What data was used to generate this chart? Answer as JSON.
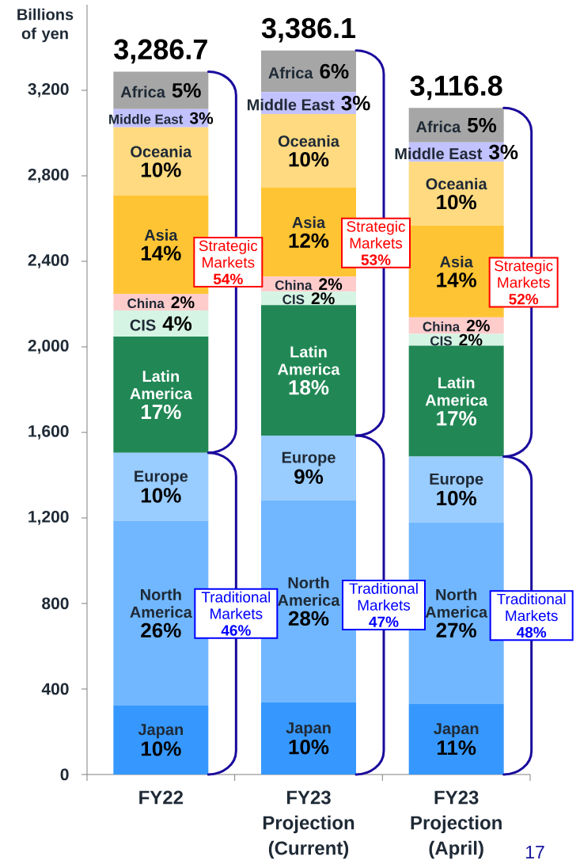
{
  "chart_data": {
    "type": "bar",
    "stacked": true,
    "ylabel": "Billions of yen",
    "categories": [
      "FY22",
      "FY23 Projection (Current)",
      "FY23 Projection (April)"
    ],
    "ylim": [
      0,
      3600
    ],
    "yticks": [
      0,
      400,
      800,
      {
        "value": 1200,
        "label": "1,200"
      },
      {
        "value": 1600,
        "label": "1,600"
      },
      {
        "value": 2000,
        "label": "2,000"
      },
      {
        "value": 2400,
        "label": "2,400"
      },
      {
        "value": 2800,
        "label": "2,800"
      },
      {
        "value": 3200,
        "label": "3,200"
      }
    ],
    "series": [
      {
        "name": "Japan",
        "color": "#3698ff",
        "values": [
          322,
          338,
          331
        ]
      },
      {
        "name": "North America",
        "color": "#70b7ff",
        "values": [
          864.7,
          944.1,
          847.8
        ]
      },
      {
        "name": "Europe",
        "color": "#99ccff",
        "values": [
          318,
          303,
          308
        ]
      },
      {
        "name": "Latin America",
        "color": "#218855",
        "values": [
          543,
          610,
          518
        ]
      },
      {
        "name": "CIS",
        "color": "#d6f4e4",
        "values": [
          122,
          63,
          56
        ]
      },
      {
        "name": "China",
        "color": "#ffcccc",
        "values": [
          77,
          70,
          77
        ]
      },
      {
        "name": "Asia",
        "color": "#ffc433",
        "values": [
          461,
          416,
          429
        ]
      },
      {
        "name": "Oceania",
        "color": "#ffda80",
        "values": [
          319,
          344,
          299
        ]
      },
      {
        "name": "Middle East",
        "color": "#c2c2ff",
        "values": [
          85,
          103,
          90
        ]
      },
      {
        "name": "Africa",
        "color": "#a6a6a6",
        "values": [
          175,
          195,
          161
        ]
      }
    ],
    "totals": [
      "3,286.7",
      "3,386.1",
      "3,116.8"
    ],
    "annotations": [
      "Strategic Markets **54%**",
      "Traditional Markets **46%**",
      "Strategic Markets **53%**",
      "Traditional Markets **47%**",
      "Strategic Markets **52%**",
      "Traditional Markets **48%**",
      "10%",
      "26%",
      "10%",
      "17%",
      "4%",
      "2%",
      "14%",
      "10%",
      "3%",
      "5%",
      "10%",
      "28%",
      "9%",
      "18%",
      "2%",
      "2%",
      "12%",
      "10%",
      "3%",
      "6%",
      "11%",
      "27%",
      "10%",
      "17%",
      "2%",
      "2%",
      "14%",
      "10%",
      "3%",
      "5%",
      "17"
    ]
  }
}
